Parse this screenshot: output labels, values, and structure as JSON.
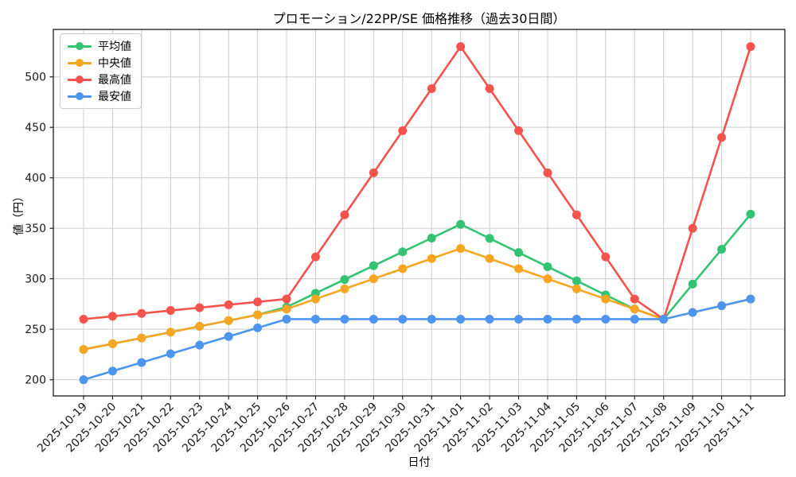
{
  "title": "プロモーション/22PP/SE 価格推移（過去30日間）",
  "chart_data": {
    "type": "line",
    "title": "プロモーション/22PP/SE 価格推移（過去30日間）",
    "xlabel": "日付",
    "ylabel": "値（円）",
    "categories": [
      "2025-10-19",
      "2025-10-20",
      "2025-10-21",
      "2025-10-22",
      "2025-10-23",
      "2025-10-24",
      "2025-10-25",
      "2025-10-26",
      "2025-10-27",
      "2025-10-28",
      "2025-10-29",
      "2025-10-30",
      "2025-10-31",
      "2025-11-01",
      "2025-11-02",
      "2025-11-03",
      "2025-11-04",
      "2025-11-05",
      "2025-11-06",
      "2025-11-07",
      "2025-11-08",
      "2025-11-09",
      "2025-11-10",
      "2025-11-11"
    ],
    "series": [
      {
        "key": "average",
        "name": "平均値",
        "color": "#34c373",
        "values": [
          230,
          235.7,
          241.4,
          247.1,
          252.9,
          258.6,
          264.3,
          272,
          285.7,
          299.3,
          313,
          326.7,
          340.3,
          354,
          340,
          326,
          312,
          298,
          284,
          270,
          260,
          294.7,
          329.3,
          364
        ]
      },
      {
        "key": "median",
        "name": "中央値",
        "color": "#f7a623",
        "values": [
          230,
          235.7,
          241.4,
          247.1,
          252.9,
          258.6,
          264.3,
          270,
          280,
          290,
          300,
          310,
          320,
          330,
          320,
          310,
          300,
          290,
          280,
          270,
          260,
          266.7,
          273.3,
          280
        ]
      },
      {
        "key": "max",
        "name": "最高値",
        "color": "#f5534d",
        "values": [
          260,
          262.9,
          265.7,
          268.6,
          271.4,
          274.3,
          277.1,
          280,
          321.7,
          363.3,
          405,
          446.7,
          488.3,
          530,
          488.3,
          446.7,
          405,
          363.3,
          321.7,
          280,
          260,
          350,
          440,
          530
        ]
      },
      {
        "key": "min",
        "name": "最安値",
        "color": "#4d96f0",
        "values": [
          200,
          208.6,
          217.1,
          225.7,
          234.3,
          242.9,
          251.4,
          260,
          260,
          260,
          260,
          260,
          260,
          260,
          260,
          260,
          260,
          260,
          260,
          260,
          260,
          266.7,
          273.3,
          280
        ]
      }
    ],
    "ylim": [
      184,
      547
    ],
    "yticks": [
      200,
      250,
      300,
      350,
      400,
      450,
      500
    ],
    "grid": true,
    "legend_position": "upper left",
    "x_tick_rotation": 45
  },
  "colors": {
    "background": "#ffffff",
    "grid": "#cccccc",
    "axis": "#1a1a1a",
    "tick_text": "#1a1a1a",
    "legend_border": "#cccccc"
  }
}
